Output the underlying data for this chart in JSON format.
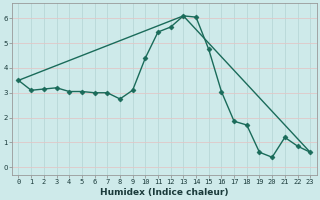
{
  "xlabel": "Humidex (Indice chaleur)",
  "background_color": "#ceeaea",
  "line_color": "#1a6b5a",
  "xlim": [
    -0.5,
    23.5
  ],
  "ylim": [
    -0.3,
    6.6
  ],
  "ytick_values": [
    0,
    1,
    2,
    3,
    4,
    5,
    6
  ],
  "series1_x": [
    0,
    1,
    2,
    3,
    4,
    5,
    6,
    7,
    8,
    9,
    10,
    11,
    12,
    13,
    14,
    15,
    16,
    17,
    18,
    19,
    20,
    21,
    22,
    23
  ],
  "series1_y": [
    3.5,
    3.1,
    3.15,
    3.2,
    3.05,
    3.05,
    3.0,
    3.0,
    2.75,
    3.1,
    4.4,
    5.45,
    5.65,
    6.1,
    6.05,
    4.75,
    3.05,
    1.85,
    1.7,
    0.6,
    0.4,
    1.2,
    0.85,
    0.6
  ],
  "series2_x": [
    0,
    13,
    23
  ],
  "series2_y": [
    3.5,
    6.1,
    0.6
  ],
  "grid_color": "#b8d8d8",
  "grid_color_minor": "#e0c8c8",
  "marker": "D",
  "marker_size": 2.5,
  "linewidth": 1.0,
  "tick_fontsize": 5.0,
  "xlabel_fontsize": 6.5
}
